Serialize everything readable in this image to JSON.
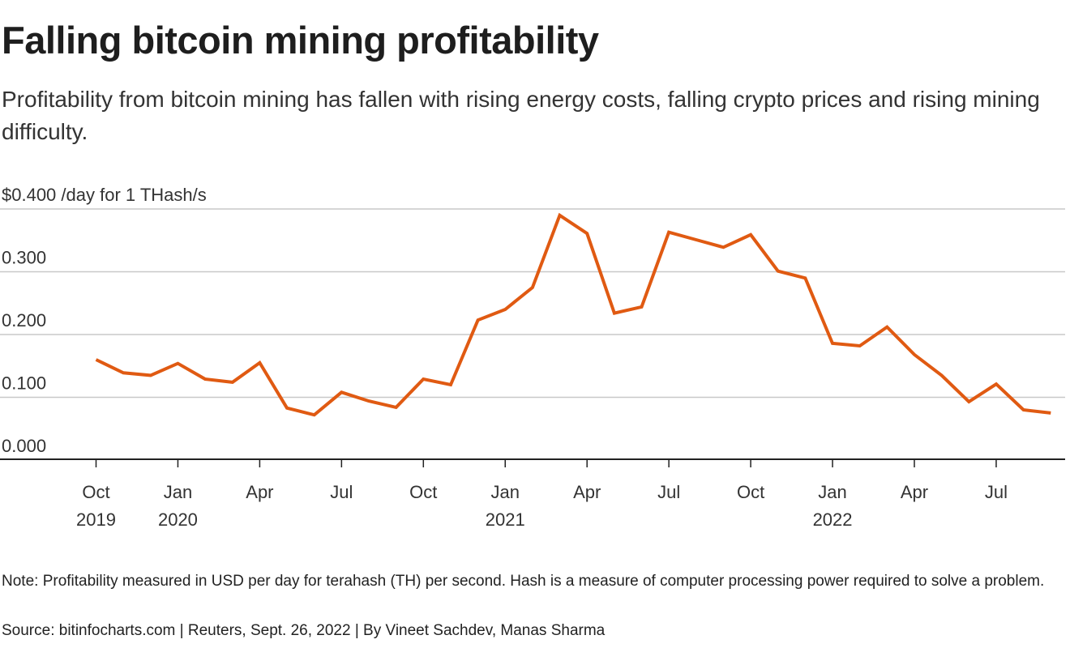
{
  "header": {
    "title": "Falling bitcoin mining profitability",
    "subtitle": "Profitability from bitcoin mining has fallen with rising energy costs, falling crypto prices and rising mining difficulty."
  },
  "footer": {
    "note": "Note: Profitability measured in USD per day for terahash (TH) per second. Hash is a measure of computer processing power required to solve a problem.",
    "source": "Source: bitinfocharts.com | Reuters, Sept. 26, 2022 | By Vineet Sachdev, Manas Sharma"
  },
  "colors": {
    "line": "#e05a12",
    "grid": "#c8c8c8",
    "axis": "#222222"
  },
  "chart_data": {
    "type": "line",
    "title": "Falling bitcoin mining profitability",
    "xlabel": "",
    "ylabel": "$ /day for 1 THash/s",
    "ylim": [
      0,
      0.4
    ],
    "yticks": [
      {
        "value": 0.4,
        "label": "$0.400 /day for 1 THash/s"
      },
      {
        "value": 0.3,
        "label": "0.300"
      },
      {
        "value": 0.2,
        "label": "0.200"
      },
      {
        "value": 0.1,
        "label": "0.100"
      },
      {
        "value": 0.0,
        "label": "0.000"
      }
    ],
    "xlim": [
      "2019-08",
      "2022-10"
    ],
    "xticks": [
      {
        "month": "2019-10",
        "label": "Oct",
        "year": "2019"
      },
      {
        "month": "2020-01",
        "label": "Jan",
        "year": "2020"
      },
      {
        "month": "2020-04",
        "label": "Apr",
        "year": ""
      },
      {
        "month": "2020-07",
        "label": "Jul",
        "year": ""
      },
      {
        "month": "2020-10",
        "label": "Oct",
        "year": ""
      },
      {
        "month": "2021-01",
        "label": "Jan",
        "year": "2021"
      },
      {
        "month": "2021-04",
        "label": "Apr",
        "year": ""
      },
      {
        "month": "2021-07",
        "label": "Jul",
        "year": ""
      },
      {
        "month": "2021-10",
        "label": "Oct",
        "year": ""
      },
      {
        "month": "2022-01",
        "label": "Jan",
        "year": "2022"
      },
      {
        "month": "2022-04",
        "label": "Apr",
        "year": ""
      },
      {
        "month": "2022-07",
        "label": "Jul",
        "year": ""
      }
    ],
    "grid": true,
    "legend": "none",
    "series": [
      {
        "name": "Bitcoin mining profitability (USD/day per THash/s)",
        "x": [
          "2019-10",
          "2019-11",
          "2019-12",
          "2020-01",
          "2020-02",
          "2020-03",
          "2020-04",
          "2020-05",
          "2020-06",
          "2020-07",
          "2020-08",
          "2020-09",
          "2020-10",
          "2020-11",
          "2020-12",
          "2021-01",
          "2021-02",
          "2021-03",
          "2021-04",
          "2021-05",
          "2021-06",
          "2021-07",
          "2021-08",
          "2021-09",
          "2021-10",
          "2021-11",
          "2021-12",
          "2022-01",
          "2022-02",
          "2022-03",
          "2022-04",
          "2022-05",
          "2022-06",
          "2022-07",
          "2022-08",
          "2022-09"
        ],
        "values": [
          0.16,
          0.139,
          0.135,
          0.154,
          0.129,
          0.124,
          0.155,
          0.083,
          0.072,
          0.108,
          0.094,
          0.084,
          0.129,
          0.12,
          0.223,
          0.24,
          0.275,
          0.39,
          0.361,
          0.234,
          0.244,
          0.363,
          0.351,
          0.339,
          0.359,
          0.301,
          0.29,
          0.186,
          0.182,
          0.212,
          0.168,
          0.135,
          0.093,
          0.121,
          0.08,
          0.075
        ]
      }
    ]
  }
}
